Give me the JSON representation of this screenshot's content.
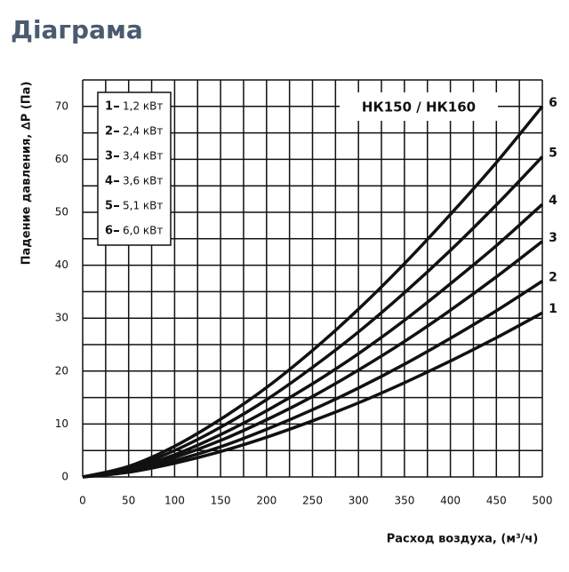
{
  "chart_data": {
    "type": "line",
    "title": "Діаграма",
    "annotation": "НК150 / НК160",
    "x_label": "Расход воздуха, (м³/ч)",
    "y_label": "Падение давления, ∆P (Па)",
    "x": [
      0,
      50,
      100,
      150,
      200,
      250,
      300,
      350,
      400,
      450,
      500
    ],
    "xlim": [
      0,
      500
    ],
    "ylim": [
      0,
      75
    ],
    "xticks": [
      0,
      50,
      100,
      150,
      200,
      250,
      300,
      350,
      400,
      450,
      500
    ],
    "yticks": [
      0,
      10,
      20,
      30,
      40,
      50,
      60,
      70
    ],
    "xgrid": [
      0,
      25,
      50,
      75,
      100,
      125,
      150,
      175,
      200,
      225,
      250,
      275,
      300,
      325,
      350,
      375,
      400,
      425,
      450,
      475,
      500
    ],
    "ygrid": [
      0,
      5,
      10,
      15,
      20,
      25,
      30,
      35,
      40,
      45,
      50,
      55,
      60,
      65,
      70,
      75
    ],
    "grid": true,
    "legend": "upper left",
    "series": [
      {
        "name": "1",
        "legend_label": "1,2 кВт",
        "color": "#111111",
        "values": [
          0,
          0.9,
          2.6,
          4.8,
          7.5,
          10.6,
          14,
          17.8,
          21.9,
          26.3,
          31
        ]
      },
      {
        "name": "2",
        "legend_label": "2,4 кВт",
        "color": "#111111",
        "values": [
          0,
          1,
          3.1,
          5.7,
          9,
          12.7,
          16.8,
          21.3,
          26.2,
          31.4,
          37
        ]
      },
      {
        "name": "3",
        "legend_label": "3,4 кВт",
        "color": "#111111",
        "values": [
          0,
          1.3,
          3.7,
          6.9,
          10.8,
          15.2,
          20.2,
          25.6,
          31.5,
          37.8,
          44.5
        ]
      },
      {
        "name": "4",
        "legend_label": "3,6 кВт",
        "color": "#111111",
        "values": [
          0,
          1.5,
          4.2,
          8,
          12.5,
          17.6,
          23.3,
          29.6,
          36.5,
          43.7,
          51.5
        ]
      },
      {
        "name": "5",
        "legend_label": "5,1 кВт",
        "color": "#111111",
        "values": [
          0,
          1.7,
          5,
          9.4,
          14.6,
          20.7,
          27.4,
          34.8,
          42.8,
          51.4,
          60.5
        ]
      },
      {
        "name": "6",
        "legend_label": "6,0 кВт",
        "color": "#111111",
        "values": [
          0,
          2,
          5.8,
          10.9,
          16.9,
          23.9,
          31.7,
          40.3,
          49.6,
          59.4,
          70
        ]
      }
    ]
  }
}
